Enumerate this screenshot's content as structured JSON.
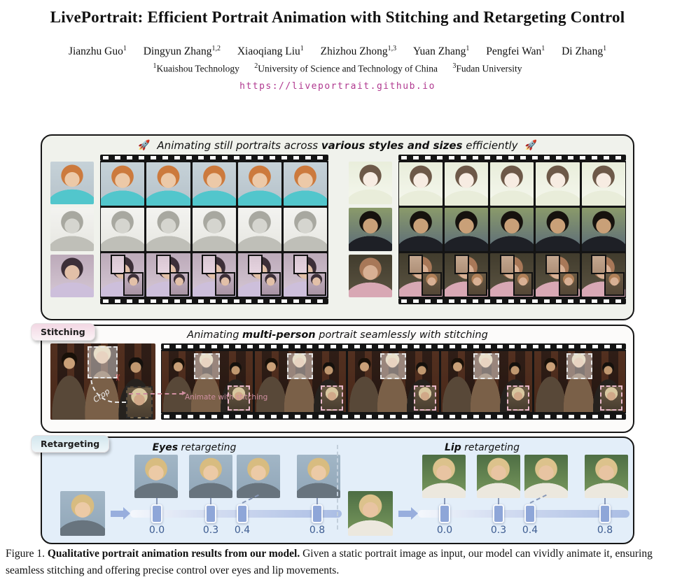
{
  "paper": {
    "title": "LivePortrait: Efficient Portrait Animation with Stitching and Retargeting Control",
    "authors": [
      {
        "name": "Jianzhu Guo",
        "sup": "1"
      },
      {
        "name": "Dingyun Zhang",
        "sup": "1,2"
      },
      {
        "name": "Xiaoqiang Liu",
        "sup": "1"
      },
      {
        "name": "Zhizhou Zhong",
        "sup": "1,3"
      },
      {
        "name": "Yuan Zhang",
        "sup": "1"
      },
      {
        "name": "Pengfei Wan",
        "sup": "1"
      },
      {
        "name": "Di Zhang",
        "sup": "1"
      }
    ],
    "affiliations": [
      {
        "sup": "1",
        "name": "Kuaishou Technology"
      },
      {
        "sup": "2",
        "name": "University of Science and Technology of China"
      },
      {
        "sup": "3",
        "name": "Fudan University"
      }
    ],
    "url": "https://liveportrait.github.io"
  },
  "figure": {
    "panel_styles": {
      "rocket": "🚀",
      "header_prefix": "Animating still portraits across ",
      "header_bold": "various styles and sizes",
      "header_suffix": " efficiently"
    },
    "panel_stitching": {
      "badge": "Stitching",
      "header_prefix": "Animating ",
      "header_bold": "multi-person",
      "header_suffix": " portrait seamlessly with stitching",
      "crop_label": "Crop",
      "scissors": "✂",
      "animate_label": "Animate with stitching"
    },
    "panel_retargeting": {
      "badge": "Retargeting",
      "eyes_bold": "Eyes",
      "eyes_rest": " retargeting",
      "lip_bold": "Lip",
      "lip_rest": " retargeting",
      "values": [
        "0.0",
        "0.3",
        "0.4",
        "0.8"
      ]
    },
    "caption_prefix": "Figure 1. ",
    "caption_bold": "Qualitative portrait animation results from our model.",
    "caption_rest": " Given a static portrait image as input, our model can vividly animate it, ensuring seamless stitching and offering precise control over eyes and lip movements."
  },
  "colors": {
    "url_link": "#b0388f",
    "slider_value": "#3d5c91",
    "slider_handle": "#8ea6d8",
    "panel_styles_bg": "#f0f2ec",
    "panel_retargeting_bg": "#e3eef9",
    "badge_stitching_bg": "#f2d7e3",
    "badge_retargeting_bg": "#d2e6ed",
    "film_black": "#141414"
  }
}
